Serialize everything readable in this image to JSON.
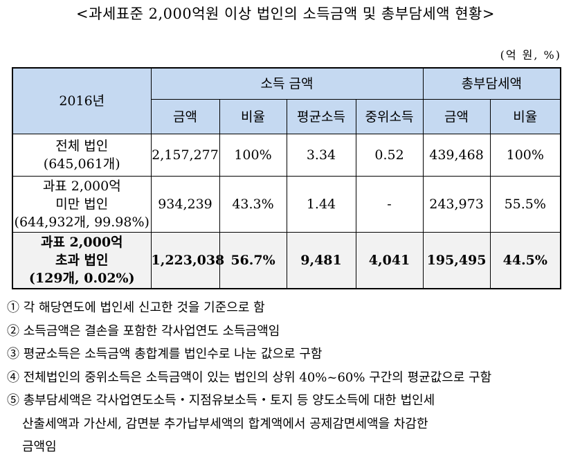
{
  "title": "<과세표준 2,000억원 이상 법인의 소득금액 및 총부담세액 현황>",
  "unit": "(억 원, %)",
  "table": {
    "year_label": "2016년",
    "group_income": "소득 금액",
    "group_tax": "총부담세액",
    "sub_headers": [
      "금액",
      "비율",
      "평균소득",
      "중위소득",
      "금액",
      "비율"
    ],
    "rows": [
      {
        "label_lines": [
          "전체 법인",
          "(645,061개)"
        ],
        "values": [
          "2,157,277",
          "100%",
          "3.34",
          "0.52",
          "439,468",
          "100%"
        ]
      },
      {
        "label_lines": [
          "과표 2,000억",
          "미만 법인",
          "(644,932개, 99.98%)"
        ],
        "values": [
          "934,239",
          "43.3%",
          "1.44",
          "-",
          "243,973",
          "55.5%"
        ]
      },
      {
        "label_lines": [
          "과표 2,000억",
          "초과 법인",
          "(129개, 0.02%)"
        ],
        "values": [
          "1,223,038",
          "56.7%",
          "9,481",
          "4,041",
          "195,495",
          "44.5%"
        ]
      }
    ]
  },
  "notes": [
    {
      "lines": [
        "① 각 해당연도에 법인세 신고한 것을 기준으로 함"
      ]
    },
    {
      "lines": [
        "② 소득금액은 결손을 포함한 각사업연도 소득금액임"
      ]
    },
    {
      "lines": [
        "③ 평균소득은 소득금액 총합계를 법인수로 나눈 값으로 구함"
      ]
    },
    {
      "lines": [
        "④ 전체법인의 중위소득은 소득금액이 있는 법인의 상위 40%~60% 구간의 평균값으로 구함"
      ]
    },
    {
      "lines": [
        "⑤ 총부담세액은 각사업연도소득・지점유보소득・토지 등 양도소득에 대한 법인세",
        "산출세액과 가산세, 감면분 추가납부세액의 합계액에서 공제감면세액을 차감한",
        "금액임"
      ]
    }
  ]
}
